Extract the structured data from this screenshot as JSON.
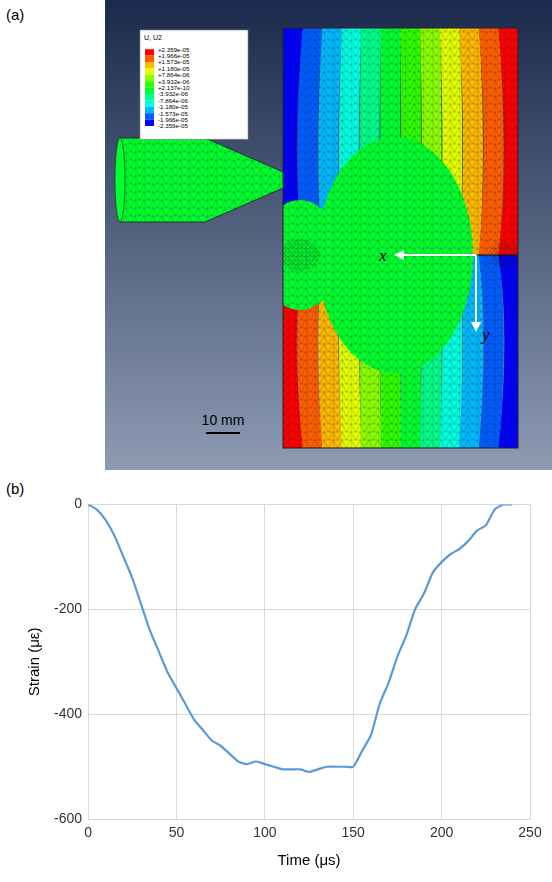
{
  "panel_a": {
    "label": "(a)",
    "contour_legend": {
      "title": "U, U2",
      "levels": [
        {
          "value": 2.359e-05,
          "label": "+2.359e-05"
        },
        {
          "value": 1.966e-05,
          "label": "+1.966e-05"
        },
        {
          "value": 1.573e-05,
          "label": "+1.573e-05"
        },
        {
          "value": 1.18e-05,
          "label": "+1.180e-05"
        },
        {
          "value": 7.864e-06,
          "label": "+7.864e-06"
        },
        {
          "value": 3.932e-06,
          "label": "+3.932e-06"
        },
        {
          "value": 2.137e-10,
          "label": "+2.137e-10"
        },
        {
          "value": -3.932e-06,
          "label": "-3.932e-06"
        },
        {
          "value": -7.864e-06,
          "label": "-7.864e-06"
        },
        {
          "value": -1.18e-05,
          "label": "-1.180e-05"
        },
        {
          "value": -1.573e-05,
          "label": "-1.573e-05"
        },
        {
          "value": -1.966e-05,
          "label": "-1.966e-05"
        },
        {
          "value": -2.359e-05,
          "label": "-2.359e-05"
        }
      ],
      "colors": [
        "#ff0000",
        "#ff5d00",
        "#ffb900",
        "#e3ff00",
        "#8bff00",
        "#2eff00",
        "#00ff2e",
        "#00ff8b",
        "#00ffe3",
        "#00b9ff",
        "#005dff",
        "#0000ff"
      ]
    },
    "axis_labels": [
      "x",
      "y"
    ],
    "scale_bar": "10 mm"
  },
  "panel_b_label": "(b)",
  "chart_data": {
    "type": "line",
    "x_label": "Time (μs)",
    "y_label": "Strain (με)",
    "x": [
      0,
      5,
      10,
      15,
      20,
      25,
      30,
      35,
      40,
      45,
      50,
      55,
      60,
      65,
      70,
      75,
      80,
      85,
      90,
      95,
      100,
      105,
      110,
      115,
      120,
      125,
      130,
      135,
      140,
      145,
      150,
      155,
      160,
      165,
      170,
      175,
      180,
      185,
      190,
      195,
      200,
      205,
      210,
      215,
      220,
      225,
      230,
      235,
      240
    ],
    "values": [
      0,
      -10,
      -30,
      -60,
      -100,
      -140,
      -190,
      -240,
      -280,
      -320,
      -350,
      -380,
      -410,
      -430,
      -450,
      -460,
      -475,
      -490,
      -495,
      -490,
      -495,
      -500,
      -505,
      -505,
      -505,
      -510,
      -505,
      -500,
      -500,
      -500,
      -500,
      -470,
      -440,
      -380,
      -340,
      -290,
      -250,
      -200,
      -170,
      -130,
      -110,
      -95,
      -85,
      -70,
      -50,
      -40,
      -10,
      0,
      0
    ],
    "color": "#5b9bd5",
    "xlim": [
      0,
      250
    ],
    "xticks": [
      0,
      50,
      100,
      150,
      200,
      250
    ],
    "ylim": [
      -600,
      0
    ],
    "yticks": [
      -600,
      -400,
      -200,
      0
    ],
    "grid": true
  }
}
